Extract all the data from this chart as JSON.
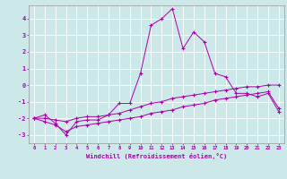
{
  "xlabel": "Windchill (Refroidissement éolien,°C)",
  "x_ticks": [
    0,
    1,
    2,
    3,
    4,
    5,
    6,
    7,
    8,
    9,
    10,
    11,
    12,
    13,
    14,
    15,
    16,
    17,
    18,
    19,
    20,
    21,
    22,
    23
  ],
  "ylim": [
    -3.5,
    4.8
  ],
  "xlim": [
    -0.5,
    23.5
  ],
  "bg_color": "#cce8e8",
  "line_color": "#aa00aa",
  "line1_x": [
    0,
    1,
    2,
    3,
    4,
    5,
    6,
    7,
    8,
    9,
    10,
    11,
    12,
    13,
    14,
    15,
    16,
    17,
    18,
    19,
    20,
    21,
    22,
    23
  ],
  "line1_y": [
    -2.0,
    -1.8,
    -2.3,
    -3.0,
    -2.2,
    -2.1,
    -2.1,
    -1.8,
    -1.1,
    -1.1,
    0.7,
    3.6,
    4.0,
    4.6,
    2.2,
    3.2,
    2.6,
    0.7,
    0.5,
    -0.5,
    -0.5,
    -0.7,
    -0.5,
    -1.6
  ],
  "line2_x": [
    0,
    1,
    2,
    3,
    4,
    5,
    6,
    7,
    8,
    9,
    10,
    11,
    12,
    13,
    14,
    15,
    16,
    17,
    18,
    19,
    20,
    21,
    22,
    23
  ],
  "line2_y": [
    -2.0,
    -2.0,
    -2.1,
    -2.2,
    -2.0,
    -1.9,
    -1.9,
    -1.8,
    -1.7,
    -1.5,
    -1.3,
    -1.1,
    -1.0,
    -0.8,
    -0.7,
    -0.6,
    -0.5,
    -0.4,
    -0.3,
    -0.2,
    -0.1,
    -0.1,
    0.0,
    0.0
  ],
  "line3_x": [
    0,
    1,
    2,
    3,
    4,
    5,
    6,
    7,
    8,
    9,
    10,
    11,
    12,
    13,
    14,
    15,
    16,
    17,
    18,
    19,
    20,
    21,
    22,
    23
  ],
  "line3_y": [
    -2.0,
    -2.2,
    -2.4,
    -2.8,
    -2.5,
    -2.4,
    -2.3,
    -2.2,
    -2.1,
    -2.0,
    -1.9,
    -1.7,
    -1.6,
    -1.5,
    -1.3,
    -1.2,
    -1.1,
    -0.9,
    -0.8,
    -0.7,
    -0.6,
    -0.5,
    -0.4,
    -1.4
  ],
  "yticks": [
    -3,
    -2,
    -1,
    0,
    1,
    2,
    3,
    4
  ]
}
